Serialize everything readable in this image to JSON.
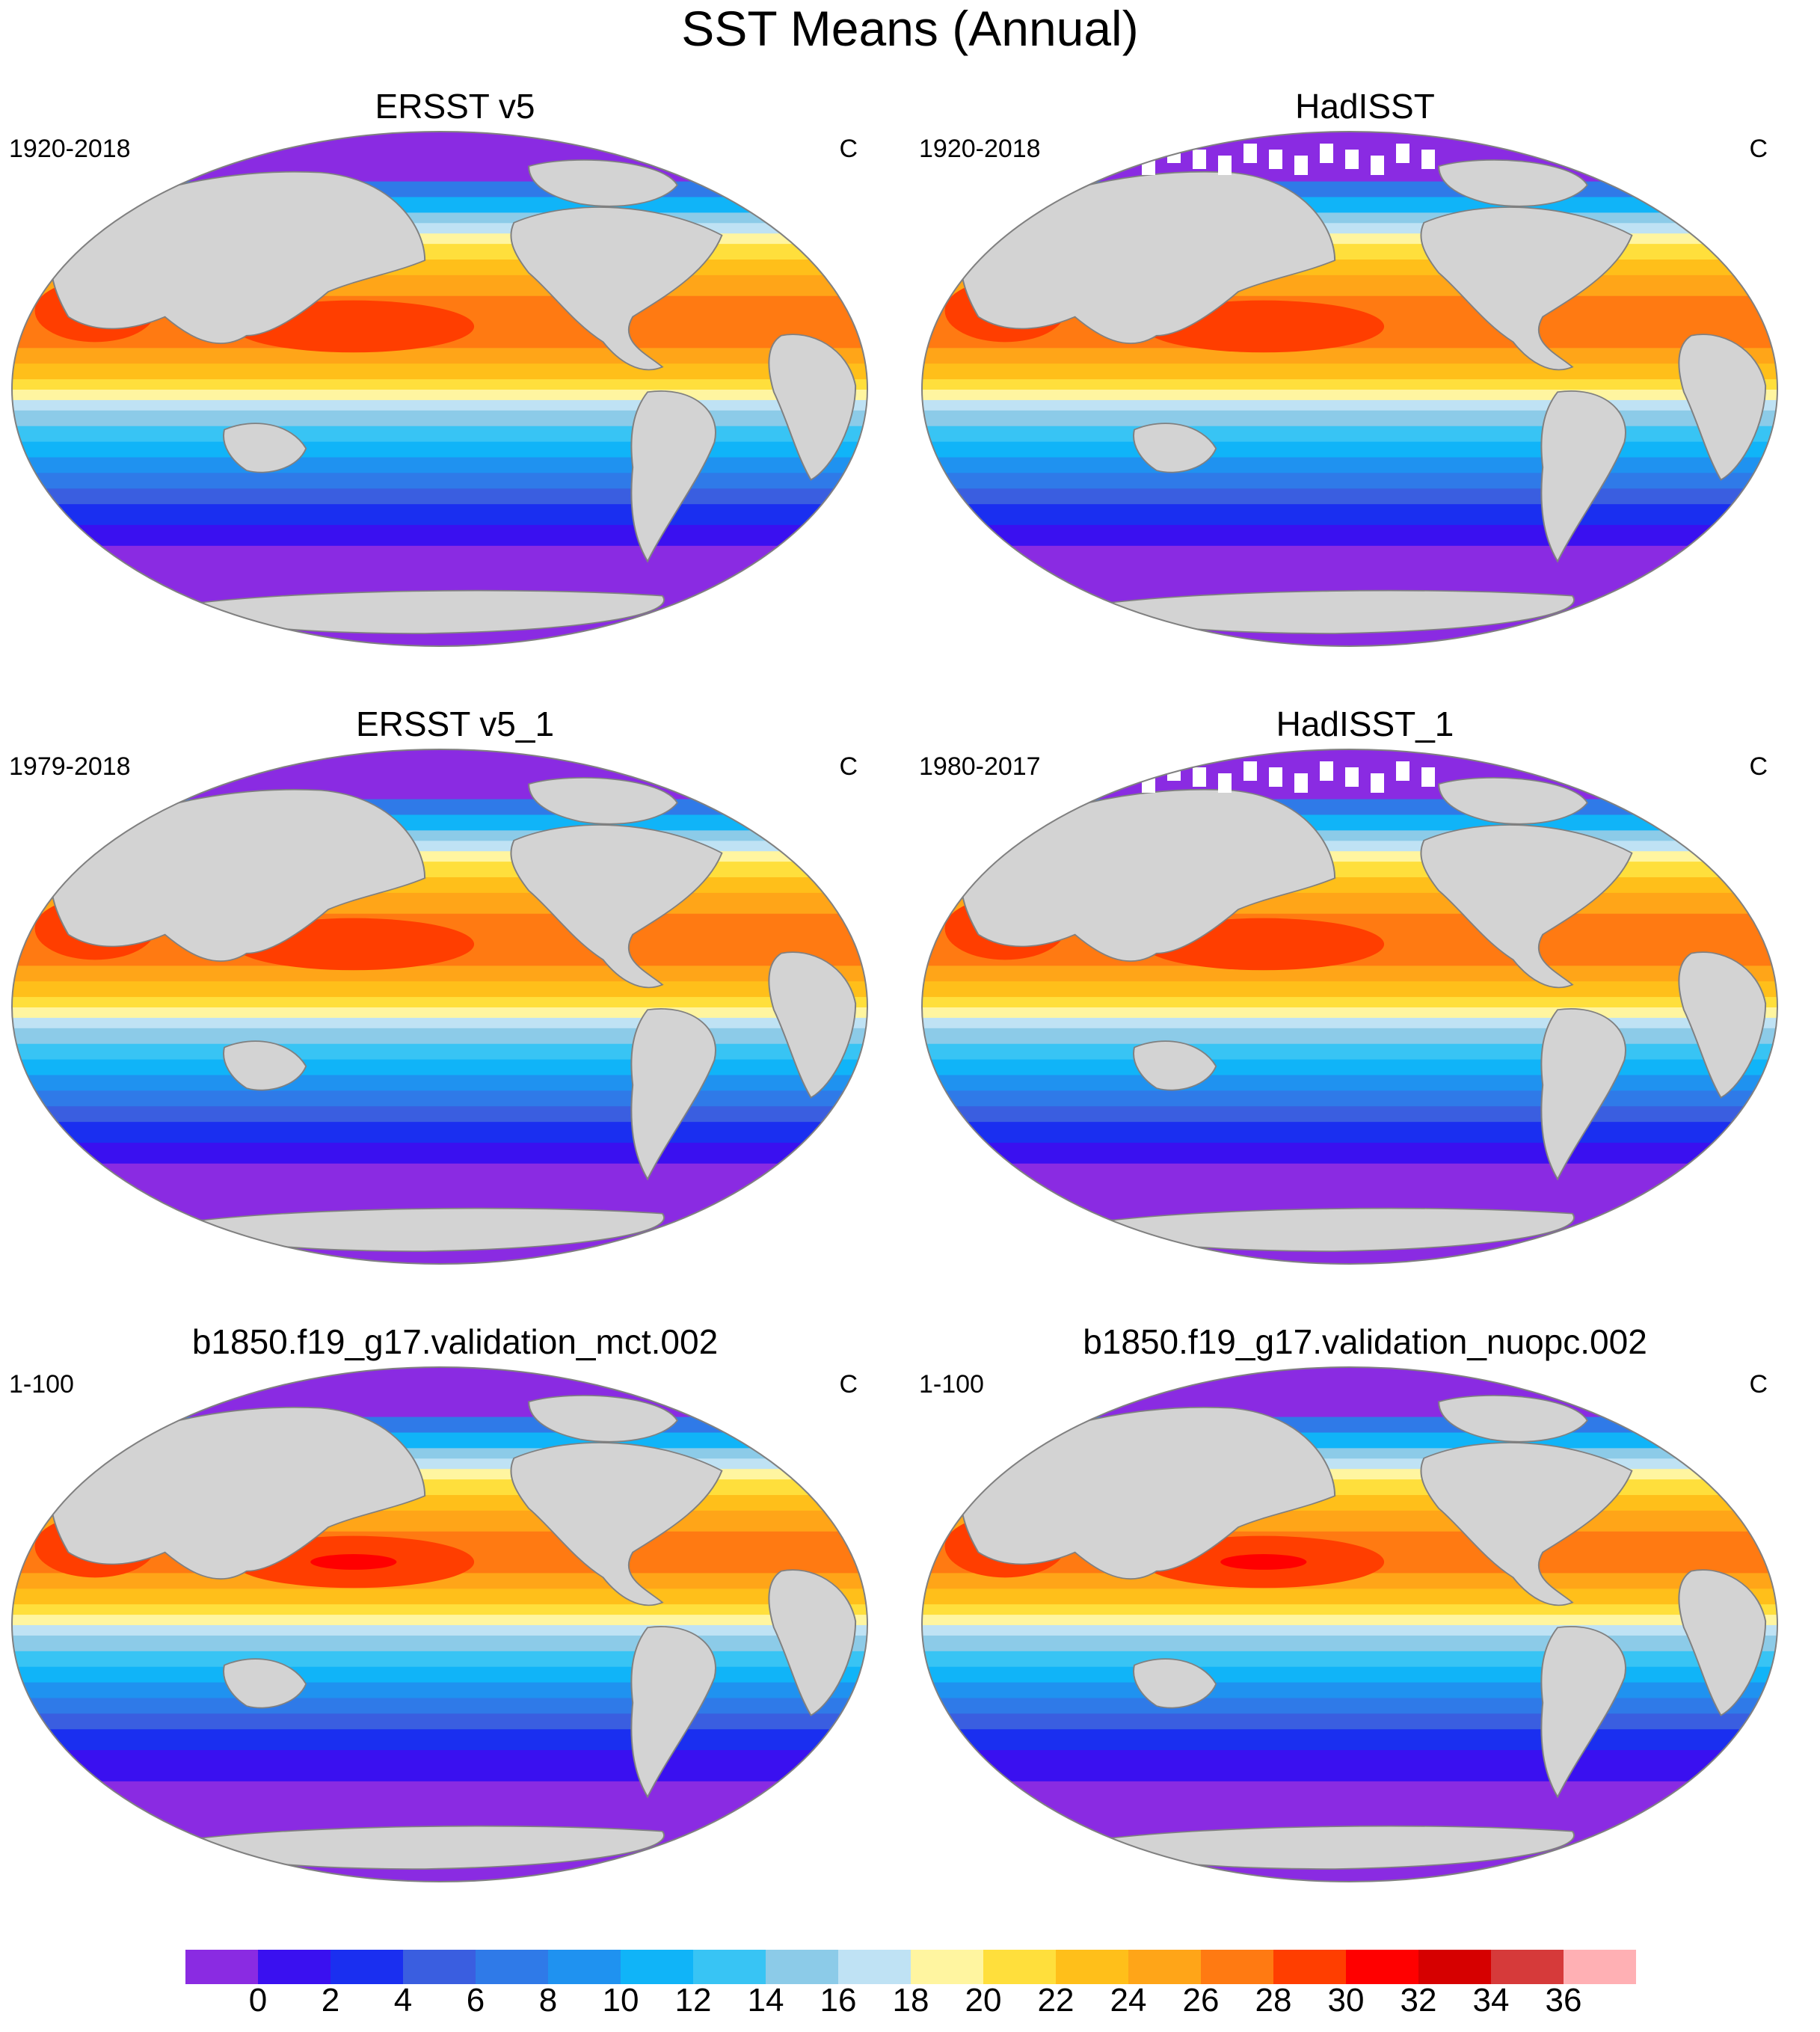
{
  "figure": {
    "title": "SST Means (Annual)"
  },
  "panels": [
    {
      "title": "ERSST v5",
      "period": "1920-2018",
      "units": "C",
      "source": "obs",
      "warm_pool_peak": 30,
      "polar_ice_gaps": false
    },
    {
      "title": "HadISST",
      "period": "1920-2018",
      "units": "C",
      "source": "obs",
      "warm_pool_peak": 30,
      "polar_ice_gaps": true
    },
    {
      "title": "ERSST v5_1",
      "period": "1979-2018",
      "units": "C",
      "source": "obs",
      "warm_pool_peak": 30,
      "polar_ice_gaps": false
    },
    {
      "title": "HadISST_1",
      "period": "1980-2017",
      "units": "C",
      "source": "obs",
      "warm_pool_peak": 30,
      "polar_ice_gaps": true
    },
    {
      "title": "b1850.f19_g17.validation_mct.002",
      "period": "1-100",
      "units": "C",
      "source": "model",
      "warm_pool_peak": 32,
      "polar_ice_gaps": false
    },
    {
      "title": "b1850.f19_g17.validation_nuopc.002",
      "period": "1-100",
      "units": "C",
      "source": "model",
      "warm_pool_peak": 32,
      "polar_ice_gaps": false
    }
  ],
  "colorbar": {
    "tick_labels": [
      "0",
      "2",
      "4",
      "6",
      "8",
      "10",
      "12",
      "14",
      "16",
      "18",
      "20",
      "22",
      "24",
      "26",
      "28",
      "30",
      "32",
      "34",
      "36"
    ],
    "colors": [
      "#8a2be2",
      "#3a10f0",
      "#1a2ff0",
      "#3a5ee0",
      "#2f7ae8",
      "#1f92f0",
      "#10b4f8",
      "#38c4f4",
      "#8ccbe8",
      "#bfe2f4",
      "#fff5a0",
      "#ffdf3c",
      "#ffbf1a",
      "#ffa518",
      "#ff7a12",
      "#ff3e00",
      "#ff0000",
      "#d60000",
      "#d63a3a",
      "#ffb0b4"
    ]
  },
  "map_colors": {
    "land": "#d3d3d3",
    "coast": "#808080",
    "frame": "#808080"
  }
}
